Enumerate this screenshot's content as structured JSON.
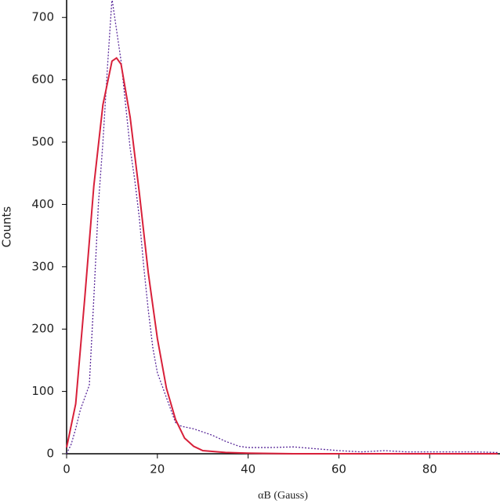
{
  "chart_data": {
    "type": "line",
    "xlabel": "αB (Gauss)",
    "ylabel": "Counts",
    "xlim": [
      0,
      95.5
    ],
    "ylim": [
      0,
      728
    ],
    "xticks": [
      0,
      20,
      40,
      60,
      80
    ],
    "yticks": [
      0,
      100,
      200,
      300,
      400,
      500,
      600,
      700
    ],
    "series": [
      {
        "color": "#5a2a9a",
        "dash": true,
        "x": [
          0,
          1,
          2,
          3,
          4,
          5,
          6,
          7,
          8,
          9,
          10,
          11,
          12,
          13,
          14,
          15,
          16,
          17,
          18,
          19,
          20,
          21,
          22,
          23,
          24,
          25,
          26,
          28,
          30,
          32,
          35,
          38,
          40,
          45,
          50,
          55,
          60,
          65,
          70,
          75,
          80,
          85,
          90,
          95
        ],
        "values": [
          0,
          15,
          40,
          70,
          90,
          110,
          250,
          400,
          500,
          620,
          730,
          680,
          630,
          560,
          490,
          440,
          380,
          300,
          230,
          170,
          130,
          110,
          90,
          70,
          50,
          45,
          43,
          40,
          35,
          30,
          20,
          12,
          10,
          10,
          11,
          8,
          5,
          3,
          5,
          3,
          3,
          3,
          3,
          2
        ]
      },
      {
        "color": "#d8203a",
        "dash": false,
        "x": [
          0,
          2,
          4,
          6,
          8,
          10,
          11,
          12,
          14,
          16,
          18,
          20,
          22,
          24,
          26,
          28,
          30,
          35,
          40,
          50,
          60,
          95
        ],
        "values": [
          10,
          80,
          250,
          430,
          560,
          630,
          635,
          625,
          540,
          420,
          290,
          185,
          105,
          55,
          25,
          12,
          5,
          2,
          1,
          0,
          0,
          0
        ]
      }
    ]
  }
}
